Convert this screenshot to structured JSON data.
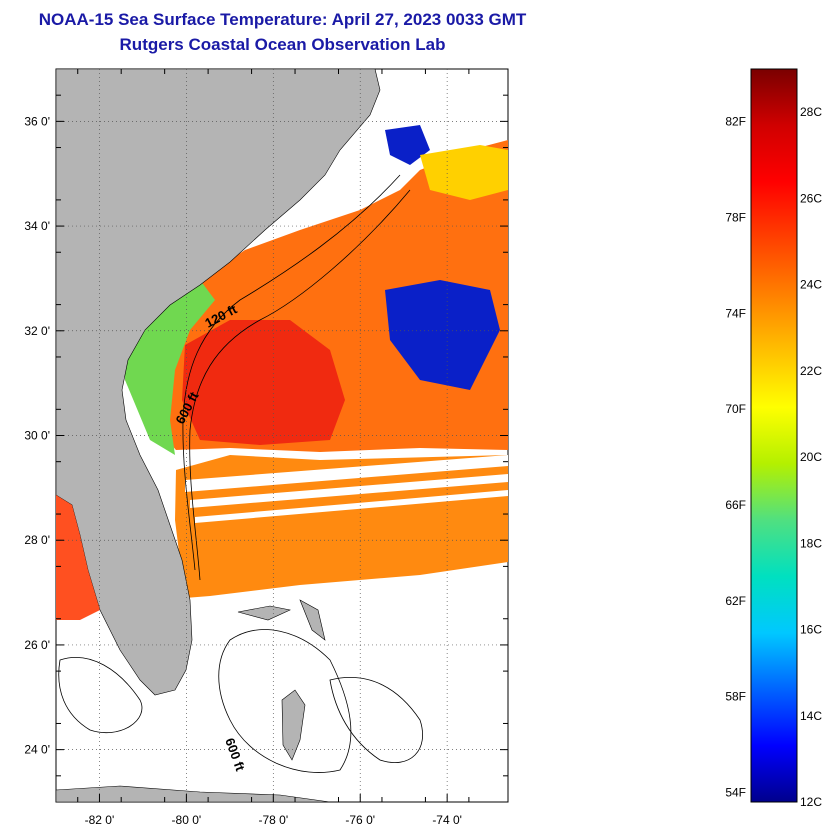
{
  "header": {
    "title_line1": "NOAA-15 Sea Surface Temperature:  April 27, 2023 0033 GMT",
    "title_line2": "Rutgers Coastal Ocean Observation Lab"
  },
  "map": {
    "lon_range": [
      -83,
      -72.6
    ],
    "lat_range": [
      23,
      37
    ],
    "lon_ticks": [
      {
        "value": -82,
        "label": "-82 0'"
      },
      {
        "value": -80,
        "label": "-80 0'"
      },
      {
        "value": -78,
        "label": "-78 0'"
      },
      {
        "value": -76,
        "label": "-76 0'"
      },
      {
        "value": -74,
        "label": "-74 0'"
      }
    ],
    "lat_ticks": [
      {
        "value": 24,
        "label": "24 0'"
      },
      {
        "value": 26,
        "label": "26 0'"
      },
      {
        "value": 28,
        "label": "28 0'"
      },
      {
        "value": 30,
        "label": "30 0'"
      },
      {
        "value": 32,
        "label": "32 0'"
      },
      {
        "value": 34,
        "label": "34 0'"
      },
      {
        "value": 36,
        "label": "36 0'"
      }
    ],
    "isobath_labels": [
      {
        "text": "120 ft"
      },
      {
        "text": "600 ft"
      },
      {
        "text": "600 ft"
      }
    ],
    "colors": {
      "land": "#b4b4b4",
      "ocean_nodata": "#ffffff",
      "grid": "#555555"
    }
  },
  "colorbar": {
    "min_c": 12,
    "max_c": 29,
    "fahrenheit_labels": [
      "82F",
      "78F",
      "74F",
      "70F",
      "66F",
      "62F",
      "58F",
      "54F"
    ],
    "celsius_labels": [
      "28C",
      "26C",
      "24C",
      "22C",
      "20C",
      "18C",
      "16C",
      "14C",
      "12C"
    ],
    "gradient_stops": [
      "#00008c",
      "#0000ff",
      "#0064ff",
      "#00c8ff",
      "#00e0c0",
      "#50e080",
      "#b4f000",
      "#ffff00",
      "#ffc000",
      "#ff8000",
      "#ff4000",
      "#ff0000",
      "#d00000",
      "#7a0000"
    ]
  }
}
